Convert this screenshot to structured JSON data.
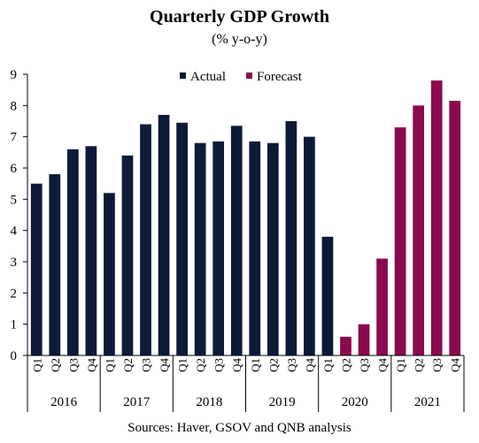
{
  "chart_data": {
    "type": "bar",
    "title": "Quarterly GDP Growth",
    "subtitle": "(% y-o-y)",
    "source": "Sources: Haver, GSOV and QNB analysis",
    "ylim": [
      0,
      9
    ],
    "yticks": [
      0,
      1,
      2,
      3,
      4,
      5,
      6,
      7,
      8,
      9
    ],
    "grid": false,
    "legend_position": "top-center",
    "quarters": [
      "Q1",
      "Q2",
      "Q3",
      "Q4"
    ],
    "years": [
      "2016",
      "2017",
      "2018",
      "2019",
      "2020",
      "2021"
    ],
    "series": [
      {
        "name": "Actual",
        "color": "#0d1a38",
        "values": [
          5.5,
          5.8,
          6.6,
          6.7,
          5.2,
          6.4,
          7.4,
          7.7,
          7.45,
          6.8,
          6.85,
          7.35,
          6.85,
          6.8,
          7.5,
          7.0,
          3.8,
          null,
          null,
          null,
          null,
          null,
          null,
          null
        ]
      },
      {
        "name": "Forecast",
        "color": "#8b0a4f",
        "values": [
          null,
          null,
          null,
          null,
          null,
          null,
          null,
          null,
          null,
          null,
          null,
          null,
          null,
          null,
          null,
          null,
          null,
          0.6,
          1.0,
          3.1,
          7.3,
          8.0,
          8.8,
          8.15
        ]
      }
    ]
  }
}
